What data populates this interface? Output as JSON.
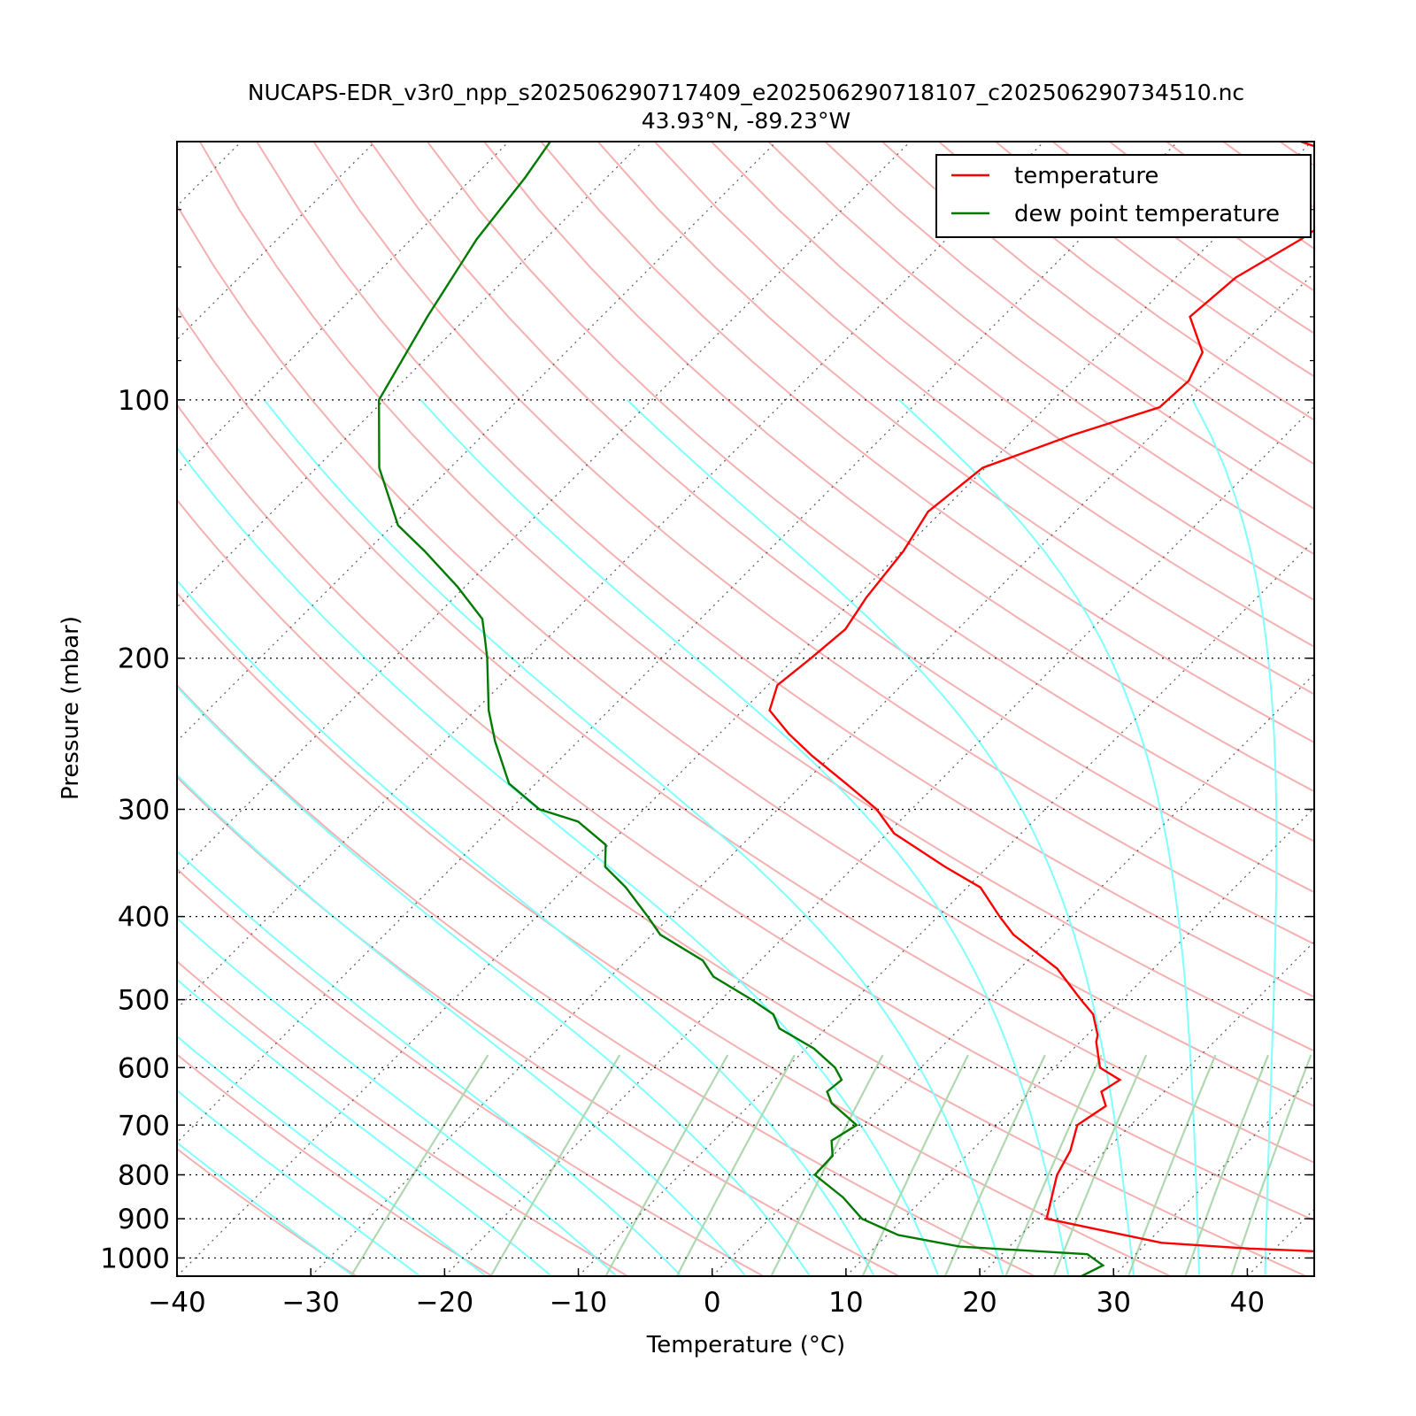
{
  "chart_data": {
    "type": "line",
    "title": "NUCAPS-EDR_v3r0_npp_s202506290717409_e202506290718107_c202506290734510.nc",
    "subtitle": "43.93°N, -89.23°W",
    "xlabel": "Temperature (°C)",
    "ylabel": "Pressure (mbar)",
    "xlim": [
      -40,
      45
    ],
    "ylim": [
      1050,
      50
    ],
    "y_scale": "log",
    "skew": true,
    "grid": true,
    "legend_position": "top-right",
    "x_ticks": [
      -40,
      -30,
      -20,
      -10,
      0,
      10,
      20,
      30,
      40
    ],
    "x_tick_labels": [
      "−40",
      "−30",
      "−20",
      "−10",
      "0",
      "10",
      "20",
      "30",
      "40"
    ],
    "y_ticks": [
      100,
      200,
      300,
      400,
      500,
      600,
      700,
      800,
      900,
      1000
    ],
    "y_tick_labels": [
      "100",
      "200",
      "300",
      "400",
      "500",
      "600",
      "700",
      "800",
      "900",
      "1000"
    ],
    "colors": {
      "temperature": "#ff0000",
      "dewpoint": "#007a00",
      "dry_adiabats": "#f5b0b0",
      "moist_adiabats": "#80ffff",
      "mixing_ratio": "#b0d8b0",
      "isotherms": "#555555"
    },
    "series": [
      {
        "name": "temperature",
        "pressure": [
          1012,
          990,
          975,
          960,
          900,
          800,
          750,
          700,
          665,
          640,
          620,
          600,
          560,
          550,
          520,
          500,
          460,
          420,
          400,
          370,
          350,
          320,
          300,
          280,
          260,
          245,
          230,
          215,
          200,
          185,
          170,
          150,
          135,
          120,
          110,
          102,
          95,
          88,
          80,
          72,
          65,
          58,
          52,
          50
        ],
        "values": [
          70.0,
          48.9,
          38.1,
          31.1,
          20.7,
          18.2,
          17.4,
          16.0,
          16.7,
          15.3,
          15.8,
          13.4,
          11.2,
          10.8,
          8.9,
          6.9,
          2.8,
          -3.0,
          -5.4,
          -9.0,
          -13.2,
          -19.5,
          -22.6,
          -26.8,
          -31.4,
          -34.8,
          -38.0,
          -39.3,
          -38.8,
          -38.4,
          -39.2,
          -39.9,
          -41.0,
          -40.2,
          -36.0,
          -31.5,
          -31.3,
          -32.4,
          -36.0,
          -35.5,
          -33.5,
          -32.0,
          -36.5,
          -40.8
        ]
      },
      {
        "name": "dew point temperature",
        "pressure": [
          1050,
          1020,
          990,
          970,
          940,
          900,
          850,
          800,
          760,
          730,
          700,
          660,
          640,
          620,
          600,
          570,
          540,
          520,
          500,
          470,
          450,
          420,
          400,
          370,
          350,
          330,
          310,
          300,
          280,
          250,
          230,
          200,
          190,
          180,
          165,
          150,
          140,
          120,
          100,
          80,
          65,
          55,
          50
        ],
        "values": [
          27.6,
          28.4,
          26.4,
          16.3,
          10.8,
          6.9,
          3.9,
          0.1,
          0.0,
          -1.2,
          -0.5,
          -4.0,
          -5.2,
          -5.0,
          -6.4,
          -9.4,
          -13.5,
          -15.0,
          -17.7,
          -22.3,
          -24.3,
          -29.4,
          -31.7,
          -35.5,
          -38.6,
          -40.2,
          -44.0,
          -47.8,
          -52.0,
          -56.2,
          -59.0,
          -63.0,
          -64.6,
          -66.3,
          -70.6,
          -75.7,
          -79.6,
          -85.3,
          -90.4,
          -93.0,
          -95.1,
          -96.1,
          -96.9
        ]
      }
    ],
    "legend": [
      {
        "label": "temperature",
        "color": "#ff0000"
      },
      {
        "label": "dew point temperature",
        "color": "#007a00"
      }
    ]
  }
}
